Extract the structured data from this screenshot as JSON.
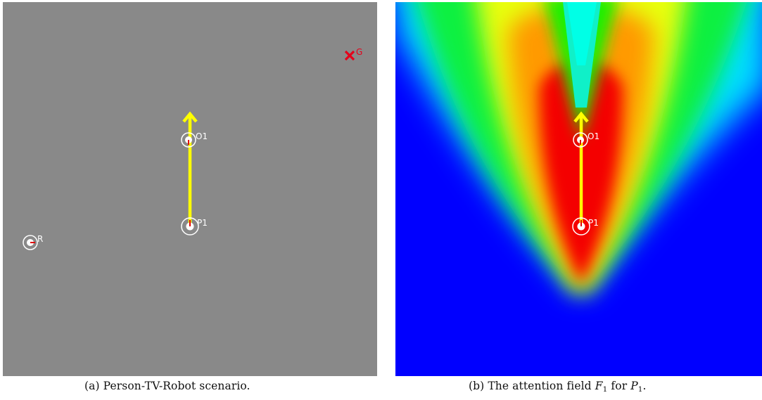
{
  "colors": {
    "scene_background": "#898989",
    "heading_arrow": "#ffff00",
    "marker": "#ffffff",
    "orientation_tick": "#e00000",
    "goal": "#e5001a"
  },
  "panel_a": {
    "caption_prefix": "(a)",
    "caption_text": "Person-TV-Robot scenario.",
    "labels": {
      "goal": "G",
      "object": "O1",
      "person": "P1",
      "robot": "R"
    }
  },
  "panel_b": {
    "caption_prefix": "(b)",
    "caption_text_1": "The attention field",
    "field_symbol": "F",
    "field_index": "1",
    "caption_text_2": "for",
    "person_symbol": "P",
    "person_index": "1",
    "caption_end": ".",
    "labels": {
      "object": "O1",
      "person": "P1"
    },
    "colormap": "jet"
  }
}
